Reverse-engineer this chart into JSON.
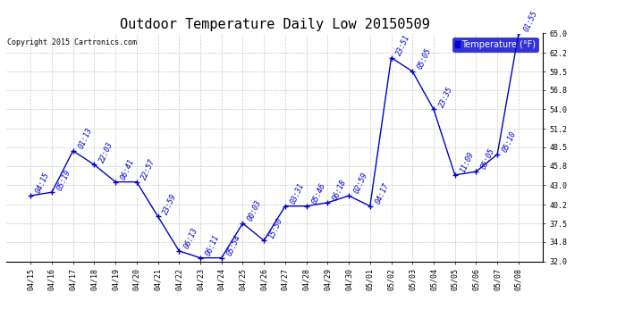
{
  "title": "Outdoor Temperature Daily Low 20150509",
  "copyright": "Copyright 2015 Cartronics.com",
  "legend_label": "Temperature (°F)",
  "x_labels": [
    "04/15",
    "04/16",
    "04/17",
    "04/18",
    "04/19",
    "04/20",
    "04/21",
    "04/22",
    "04/23",
    "04/24",
    "04/25",
    "04/26",
    "04/27",
    "04/28",
    "04/29",
    "04/30",
    "05/01",
    "05/02",
    "05/03",
    "05/04",
    "05/05",
    "05/06",
    "05/07",
    "05/08"
  ],
  "y_values": [
    41.5,
    42.0,
    48.0,
    46.0,
    43.5,
    43.5,
    38.5,
    33.5,
    32.5,
    32.5,
    37.5,
    35.0,
    40.0,
    40.0,
    40.5,
    41.5,
    40.0,
    61.5,
    59.5,
    54.0,
    44.5,
    45.0,
    47.5,
    65.0
  ],
  "point_labels": [
    "04:15",
    "05:19",
    "01:13",
    "22:03",
    "06:41",
    "22:57",
    "23:59",
    "06:13",
    "06:11",
    "05:54",
    "00:03",
    "15:50",
    "03:31",
    "05:46",
    "06:18",
    "02:59",
    "04:17",
    "23:51",
    "05:05",
    "23:35",
    "11:09",
    "05:05",
    "05:10",
    "01:55"
  ],
  "ylim": [
    32.0,
    65.0
  ],
  "yticks": [
    32.0,
    34.8,
    37.5,
    40.2,
    43.0,
    45.8,
    48.5,
    51.2,
    54.0,
    56.8,
    59.5,
    62.2,
    65.0
  ],
  "line_color": "#0000cc",
  "bg_color": "#ffffff",
  "grid_color": "#bbbbbb",
  "title_fontsize": 11,
  "tick_fontsize": 6,
  "annotation_fontsize": 6,
  "copyright_fontsize": 6
}
